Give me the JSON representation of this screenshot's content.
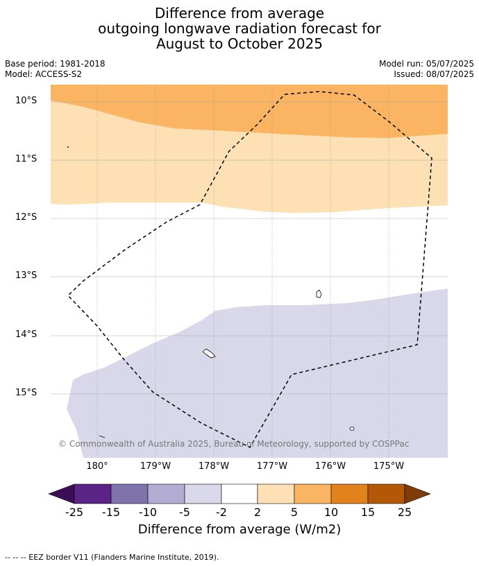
{
  "title": {
    "line1": "Difference from average",
    "line2": "outgoing longwave radiation forecast for",
    "line3": "August to October 2025"
  },
  "meta": {
    "base_period": "Base period: 1981-2018",
    "model": "Model: ACCESS-S2",
    "model_run": "Model run: 05/07/2025",
    "issued": "Issued: 08/07/2025"
  },
  "map": {
    "lat_labels": [
      "10°S",
      "11°S",
      "12°S",
      "13°S",
      "14°S",
      "15°S"
    ],
    "lon_labels": [
      "180°",
      "179°W",
      "178°W",
      "177°W",
      "176°W",
      "175°W"
    ],
    "copyright": "© Commonwealth of Australia 2025, Bureau of Meteorology, supported by COSPPac",
    "field_colors": {
      "plus_5_to_10": "#fbb562",
      "plus_2_to_5": "#fde0b4",
      "minus_5_to_minus_2": "#d8d8ea",
      "neutral": "#ffffff"
    },
    "eez_line_color": "#000000"
  },
  "colorbar": {
    "ticks": [
      "-25",
      "-15",
      "-10",
      "-5",
      "-2",
      "2",
      "5",
      "10",
      "15",
      "25"
    ],
    "colors": [
      "#5a2386",
      "#8073ac",
      "#b2abd2",
      "#d8d8ea",
      "#ffffff",
      "#fde0b4",
      "#fbb562",
      "#e1821c",
      "#b35806"
    ],
    "low_extend_color": "#3c0e58",
    "high_extend_color": "#7f3b08",
    "label": "Difference from average (W/m2)"
  },
  "footer": "--  --  -- EEZ border V11 (Flanders Marine Institute, 2019)."
}
